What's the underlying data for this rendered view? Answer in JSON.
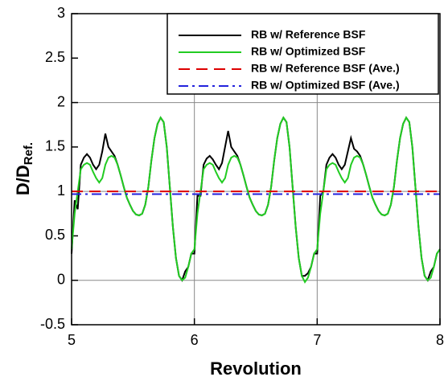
{
  "chart_data": {
    "type": "line",
    "xlabel": "Revolution",
    "ylabel": "D/D",
    "ylabel_subscript": "Ref.",
    "xlim": [
      5,
      8
    ],
    "ylim": [
      -0.5,
      3
    ],
    "xticks": [
      5,
      6,
      7,
      8
    ],
    "yticks": [
      -0.5,
      0,
      0.5,
      1,
      1.5,
      2,
      2.5,
      3
    ],
    "grid": true,
    "legend": "top-right",
    "x": [
      5,
      5.025,
      5.05,
      5.075,
      5.1,
      5.125,
      5.15,
      5.175,
      5.2,
      5.225,
      5.25,
      5.275,
      5.3,
      5.325,
      5.35,
      5.375,
      5.4,
      5.425,
      5.45,
      5.475,
      5.5,
      5.525,
      5.55,
      5.575,
      5.6,
      5.625,
      5.65,
      5.675,
      5.7,
      5.725,
      5.75,
      5.775,
      5.8,
      5.825,
      5.85,
      5.875,
      5.9,
      5.925,
      5.95,
      5.975,
      6,
      6.025,
      6.05,
      6.075,
      6.1,
      6.125,
      6.15,
      6.175,
      6.2,
      6.225,
      6.25,
      6.275,
      6.3,
      6.325,
      6.35,
      6.375,
      6.4,
      6.425,
      6.45,
      6.475,
      6.5,
      6.525,
      6.55,
      6.575,
      6.6,
      6.625,
      6.65,
      6.675,
      6.7,
      6.725,
      6.75,
      6.775,
      6.8,
      6.825,
      6.85,
      6.875,
      6.9,
      6.925,
      6.95,
      6.975,
      7,
      7.025,
      7.05,
      7.075,
      7.1,
      7.125,
      7.15,
      7.175,
      7.2,
      7.225,
      7.25,
      7.275,
      7.3,
      7.325,
      7.35,
      7.375,
      7.4,
      7.425,
      7.45,
      7.475,
      7.5,
      7.525,
      7.55,
      7.575,
      7.6,
      7.625,
      7.65,
      7.675,
      7.7,
      7.725,
      7.75,
      7.775,
      7.8,
      7.825,
      7.85,
      7.875,
      7.9,
      7.925,
      7.95,
      7.975,
      8
    ],
    "series": [
      {
        "name": "RB w/ Reference BSF",
        "color": "#000000",
        "style": "solid",
        "values": [
          0.3,
          0.9,
          0.8,
          1.3,
          1.38,
          1.42,
          1.38,
          1.3,
          1.25,
          1.3,
          1.45,
          1.65,
          1.5,
          1.45,
          1.4,
          1.3,
          1.18,
          1.05,
          0.93,
          0.85,
          0.78,
          0.74,
          0.73,
          0.75,
          0.85,
          1.05,
          1.35,
          1.6,
          1.76,
          1.83,
          1.78,
          1.5,
          1.05,
          0.6,
          0.25,
          0.05,
          0.0,
          0.1,
          0.15,
          0.3,
          0.3,
          0.95,
          0.95,
          1.3,
          1.37,
          1.4,
          1.36,
          1.3,
          1.25,
          1.32,
          1.5,
          1.68,
          1.5,
          1.45,
          1.4,
          1.3,
          1.18,
          1.05,
          0.93,
          0.85,
          0.78,
          0.74,
          0.73,
          0.75,
          0.85,
          1.05,
          1.35,
          1.6,
          1.76,
          1.83,
          1.78,
          1.5,
          1.05,
          0.6,
          0.25,
          0.05,
          0.05,
          0.08,
          0.15,
          0.3,
          0.3,
          0.95,
          1.0,
          1.3,
          1.38,
          1.42,
          1.38,
          1.3,
          1.25,
          1.3,
          1.45,
          1.6,
          1.48,
          1.45,
          1.4,
          1.3,
          1.18,
          1.05,
          0.93,
          0.85,
          0.78,
          0.74,
          0.73,
          0.75,
          0.85,
          1.05,
          1.35,
          1.6,
          1.76,
          1.83,
          1.78,
          1.5,
          1.05,
          0.6,
          0.25,
          0.05,
          0.0,
          0.1,
          0.15,
          0.3,
          0.35
        ]
      },
      {
        "name": "RB w/ Optimized BSF",
        "color": "#22cc22",
        "style": "solid",
        "values": [
          0.35,
          0.75,
          1.0,
          1.25,
          1.3,
          1.32,
          1.3,
          1.22,
          1.15,
          1.1,
          1.15,
          1.3,
          1.38,
          1.4,
          1.38,
          1.3,
          1.18,
          1.05,
          0.93,
          0.85,
          0.78,
          0.74,
          0.73,
          0.75,
          0.85,
          1.05,
          1.35,
          1.6,
          1.76,
          1.83,
          1.78,
          1.5,
          1.05,
          0.6,
          0.25,
          0.05,
          0.0,
          0.03,
          0.15,
          0.3,
          0.35,
          0.75,
          1.0,
          1.25,
          1.3,
          1.32,
          1.3,
          1.22,
          1.15,
          1.1,
          1.15,
          1.3,
          1.38,
          1.4,
          1.38,
          1.3,
          1.18,
          1.05,
          0.93,
          0.85,
          0.78,
          0.74,
          0.73,
          0.75,
          0.85,
          1.05,
          1.35,
          1.6,
          1.76,
          1.83,
          1.78,
          1.5,
          1.05,
          0.6,
          0.25,
          0.05,
          -0.02,
          0.03,
          0.15,
          0.3,
          0.35,
          0.75,
          1.0,
          1.25,
          1.3,
          1.32,
          1.3,
          1.22,
          1.15,
          1.1,
          1.15,
          1.3,
          1.38,
          1.4,
          1.38,
          1.3,
          1.18,
          1.05,
          0.93,
          0.85,
          0.78,
          0.74,
          0.73,
          0.75,
          0.85,
          1.05,
          1.35,
          1.6,
          1.76,
          1.83,
          1.78,
          1.5,
          1.05,
          0.6,
          0.25,
          0.05,
          0.0,
          0.03,
          0.15,
          0.3,
          0.35
        ]
      },
      {
        "name": "RB w/ Reference BSF (Ave.)",
        "color": "#dd0000",
        "style": "dashed",
        "x": [
          5,
          8
        ],
        "values": [
          1.0,
          1.0
        ]
      },
      {
        "name": "RB w/ Optimized BSF (Ave.)",
        "color": "#2222dd",
        "style": "dashdot",
        "x": [
          5,
          8
        ],
        "values": [
          0.97,
          0.97
        ]
      }
    ]
  }
}
